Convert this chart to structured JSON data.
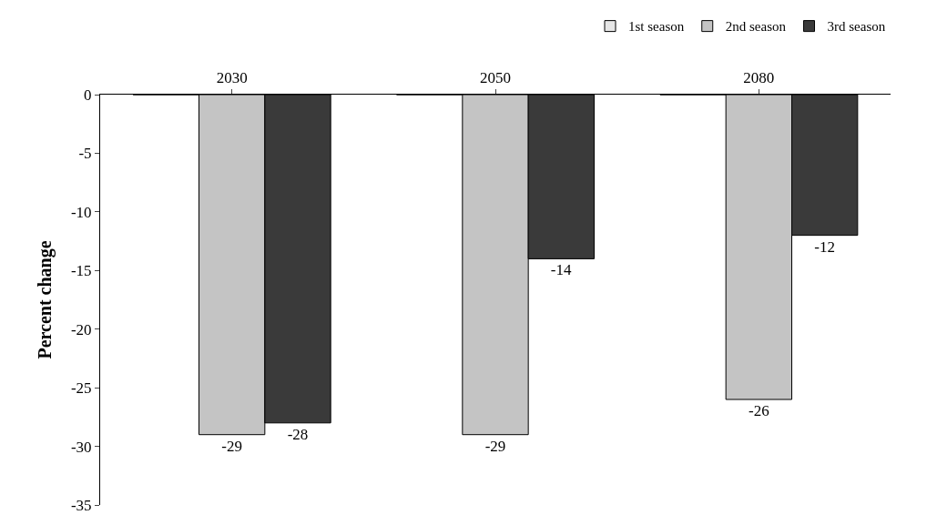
{
  "chart_data": {
    "type": "bar",
    "ylabel": "Percent change",
    "categories": [
      "2030",
      "2050",
      "2080"
    ],
    "series": [
      {
        "name": "1st season",
        "color": "#e6e6e6",
        "values": [
          0,
          0,
          0
        ],
        "value_labels": [
          null,
          null,
          null
        ]
      },
      {
        "name": "2nd season",
        "color": "#c4c4c4",
        "values": [
          -29,
          -29,
          -26
        ],
        "value_labels": [
          "-29",
          "-29",
          "-26"
        ]
      },
      {
        "name": "3rd season",
        "color": "#3a3a3a",
        "values": [
          -28,
          -14,
          -12
        ],
        "value_labels": [
          "-28",
          "-14",
          "-12"
        ]
      }
    ],
    "ylim": [
      -35,
      0
    ],
    "yticks": [
      0,
      -5,
      -10,
      -15,
      -20,
      -25,
      -30,
      -35
    ],
    "legend": "top right"
  }
}
